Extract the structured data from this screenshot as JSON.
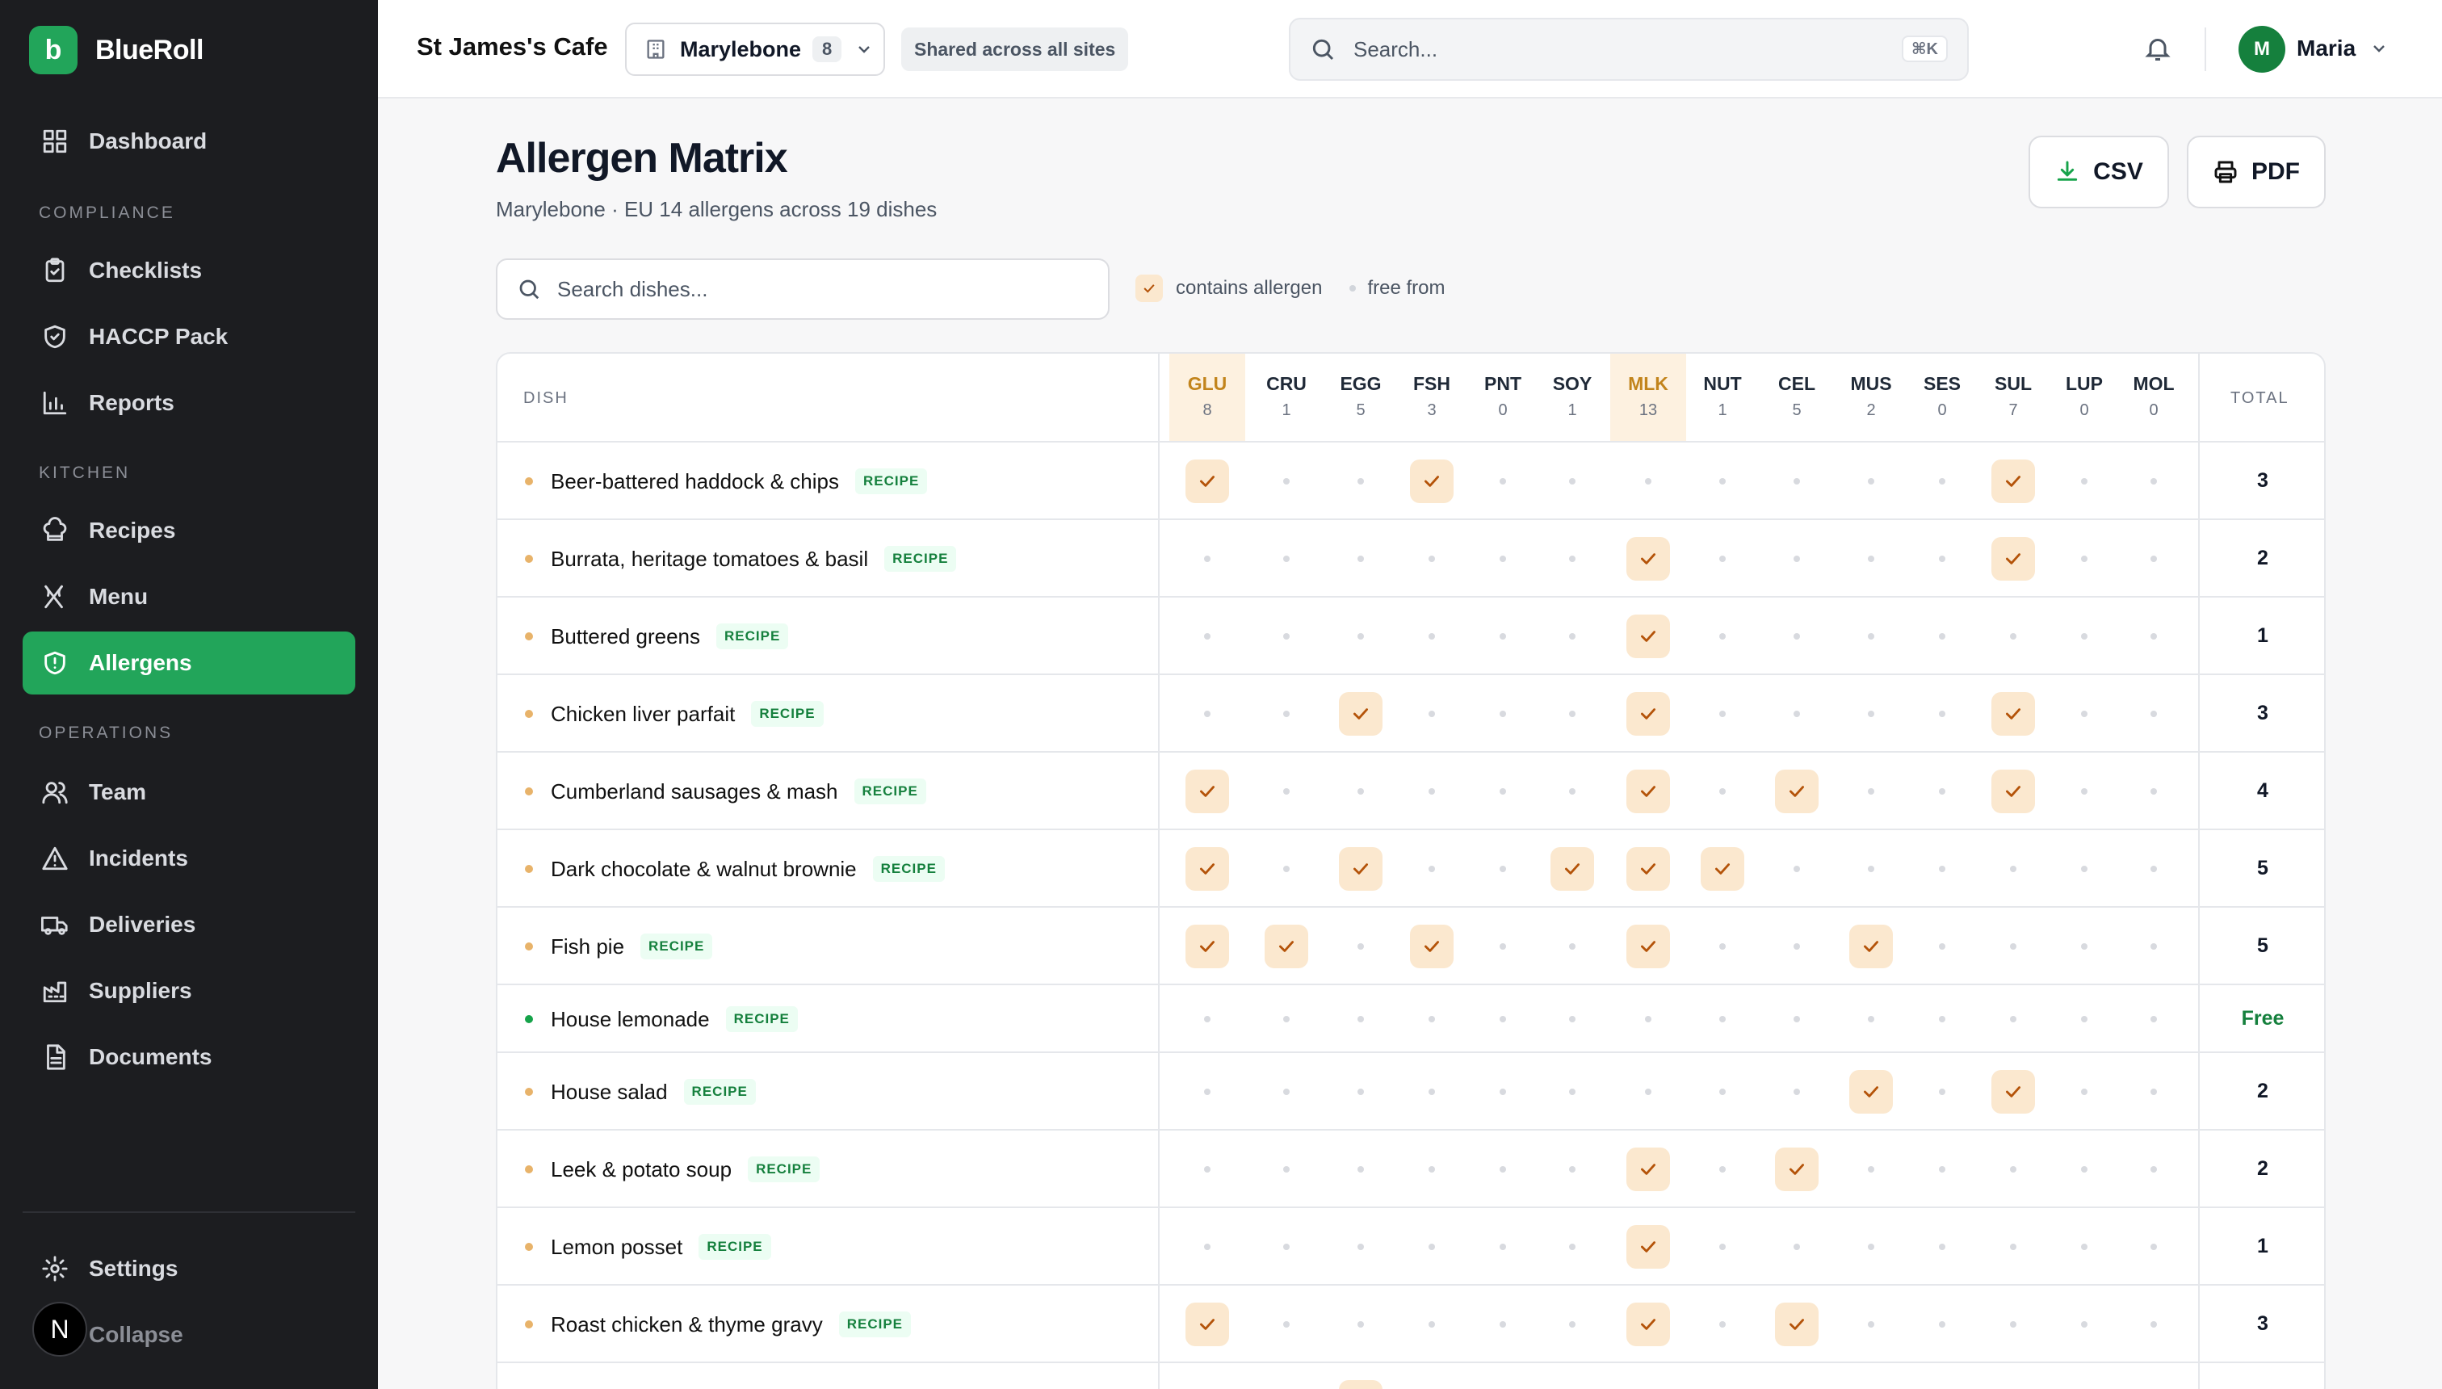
{
  "brand": {
    "name": "BlueRoll",
    "logo_letter": "b"
  },
  "sidebar": {
    "dashboard": "Dashboard",
    "sections": {
      "compliance": "COMPLIANCE",
      "kitchen": "KITCHEN",
      "operations": "OPERATIONS"
    },
    "items": {
      "checklists": "Checklists",
      "haccp": "HACCP Pack",
      "reports": "Reports",
      "recipes": "Recipes",
      "menu": "Menu",
      "allergens": "Allergens",
      "team": "Team",
      "incidents": "Incidents",
      "deliveries": "Deliveries",
      "suppliers": "Suppliers",
      "documents": "Documents"
    },
    "settings": "Settings",
    "collapse": "Collapse",
    "badge": "N"
  },
  "topbar": {
    "cafe": "St James's Cafe",
    "site": "Marylebone",
    "site_count": "8",
    "shared": "Shared across all sites",
    "search_placeholder": "Search...",
    "shortcut": "⌘K",
    "user_initial": "M",
    "user_name": "Maria"
  },
  "page": {
    "title": "Allergen Matrix",
    "subtitle": "Marylebone · EU 14 allergens across 19 dishes",
    "csv": "CSV",
    "pdf": "PDF",
    "dish_search_placeholder": "Search dishes...",
    "legend_contains": "contains allergen",
    "legend_free": "free from"
  },
  "table": {
    "dish_header": "DISH",
    "total_header": "TOTAL",
    "tag": "RECIPE",
    "allergens": [
      {
        "code": "GLU",
        "count": "8",
        "highlight": true
      },
      {
        "code": "CRU",
        "count": "1",
        "highlight": false
      },
      {
        "code": "EGG",
        "count": "5",
        "highlight": false
      },
      {
        "code": "FSH",
        "count": "3",
        "highlight": false
      },
      {
        "code": "PNT",
        "count": "0",
        "highlight": false
      },
      {
        "code": "SOY",
        "count": "1",
        "highlight": false
      },
      {
        "code": "MLK",
        "count": "13",
        "highlight": true
      },
      {
        "code": "NUT",
        "count": "1",
        "highlight": false
      },
      {
        "code": "CEL",
        "count": "5",
        "highlight": false
      },
      {
        "code": "MUS",
        "count": "2",
        "highlight": false
      },
      {
        "code": "SES",
        "count": "0",
        "highlight": false
      },
      {
        "code": "SUL",
        "count": "7",
        "highlight": false
      },
      {
        "code": "LUP",
        "count": "0",
        "highlight": false
      },
      {
        "code": "MOL",
        "count": "0",
        "highlight": false
      }
    ],
    "rows": [
      {
        "name": "Beer-battered haddock & chips",
        "flags": [
          1,
          0,
          0,
          1,
          0,
          0,
          0,
          0,
          0,
          0,
          0,
          1,
          0,
          0
        ],
        "total": "3"
      },
      {
        "name": "Burrata, heritage tomatoes & basil",
        "flags": [
          0,
          0,
          0,
          0,
          0,
          0,
          1,
          0,
          0,
          0,
          0,
          1,
          0,
          0
        ],
        "total": "2"
      },
      {
        "name": "Buttered greens",
        "flags": [
          0,
          0,
          0,
          0,
          0,
          0,
          1,
          0,
          0,
          0,
          0,
          0,
          0,
          0
        ],
        "total": "1"
      },
      {
        "name": "Chicken liver parfait",
        "flags": [
          0,
          0,
          1,
          0,
          0,
          0,
          1,
          0,
          0,
          0,
          0,
          1,
          0,
          0
        ],
        "total": "3"
      },
      {
        "name": "Cumberland sausages & mash",
        "flags": [
          1,
          0,
          0,
          0,
          0,
          0,
          1,
          0,
          1,
          0,
          0,
          1,
          0,
          0
        ],
        "total": "4"
      },
      {
        "name": "Dark chocolate & walnut brownie",
        "flags": [
          1,
          0,
          1,
          0,
          0,
          1,
          1,
          1,
          0,
          0,
          0,
          0,
          0,
          0
        ],
        "total": "5"
      },
      {
        "name": "Fish pie",
        "flags": [
          1,
          1,
          0,
          1,
          0,
          0,
          1,
          0,
          0,
          1,
          0,
          0,
          0,
          0
        ],
        "total": "5"
      },
      {
        "name": "House lemonade",
        "flags": [
          0,
          0,
          0,
          0,
          0,
          0,
          0,
          0,
          0,
          0,
          0,
          0,
          0,
          0
        ],
        "total": "Free"
      },
      {
        "name": "House salad",
        "flags": [
          0,
          0,
          0,
          0,
          0,
          0,
          0,
          0,
          0,
          1,
          0,
          1,
          0,
          0
        ],
        "total": "2"
      },
      {
        "name": "Leek & potato soup",
        "flags": [
          0,
          0,
          0,
          0,
          0,
          0,
          1,
          0,
          1,
          0,
          0,
          0,
          0,
          0
        ],
        "total": "2"
      },
      {
        "name": "Lemon posset",
        "flags": [
          0,
          0,
          0,
          0,
          0,
          0,
          1,
          0,
          0,
          0,
          0,
          0,
          0,
          0
        ],
        "total": "1"
      },
      {
        "name": "Roast chicken & thyme gravy",
        "flags": [
          1,
          0,
          0,
          0,
          0,
          0,
          1,
          0,
          1,
          0,
          0,
          0,
          0,
          0
        ],
        "total": "3"
      },
      {
        "name": "",
        "flags": [
          0,
          0,
          1,
          0,
          0,
          0,
          0,
          0,
          0,
          0,
          0,
          0,
          0,
          0
        ],
        "total": ""
      }
    ]
  }
}
